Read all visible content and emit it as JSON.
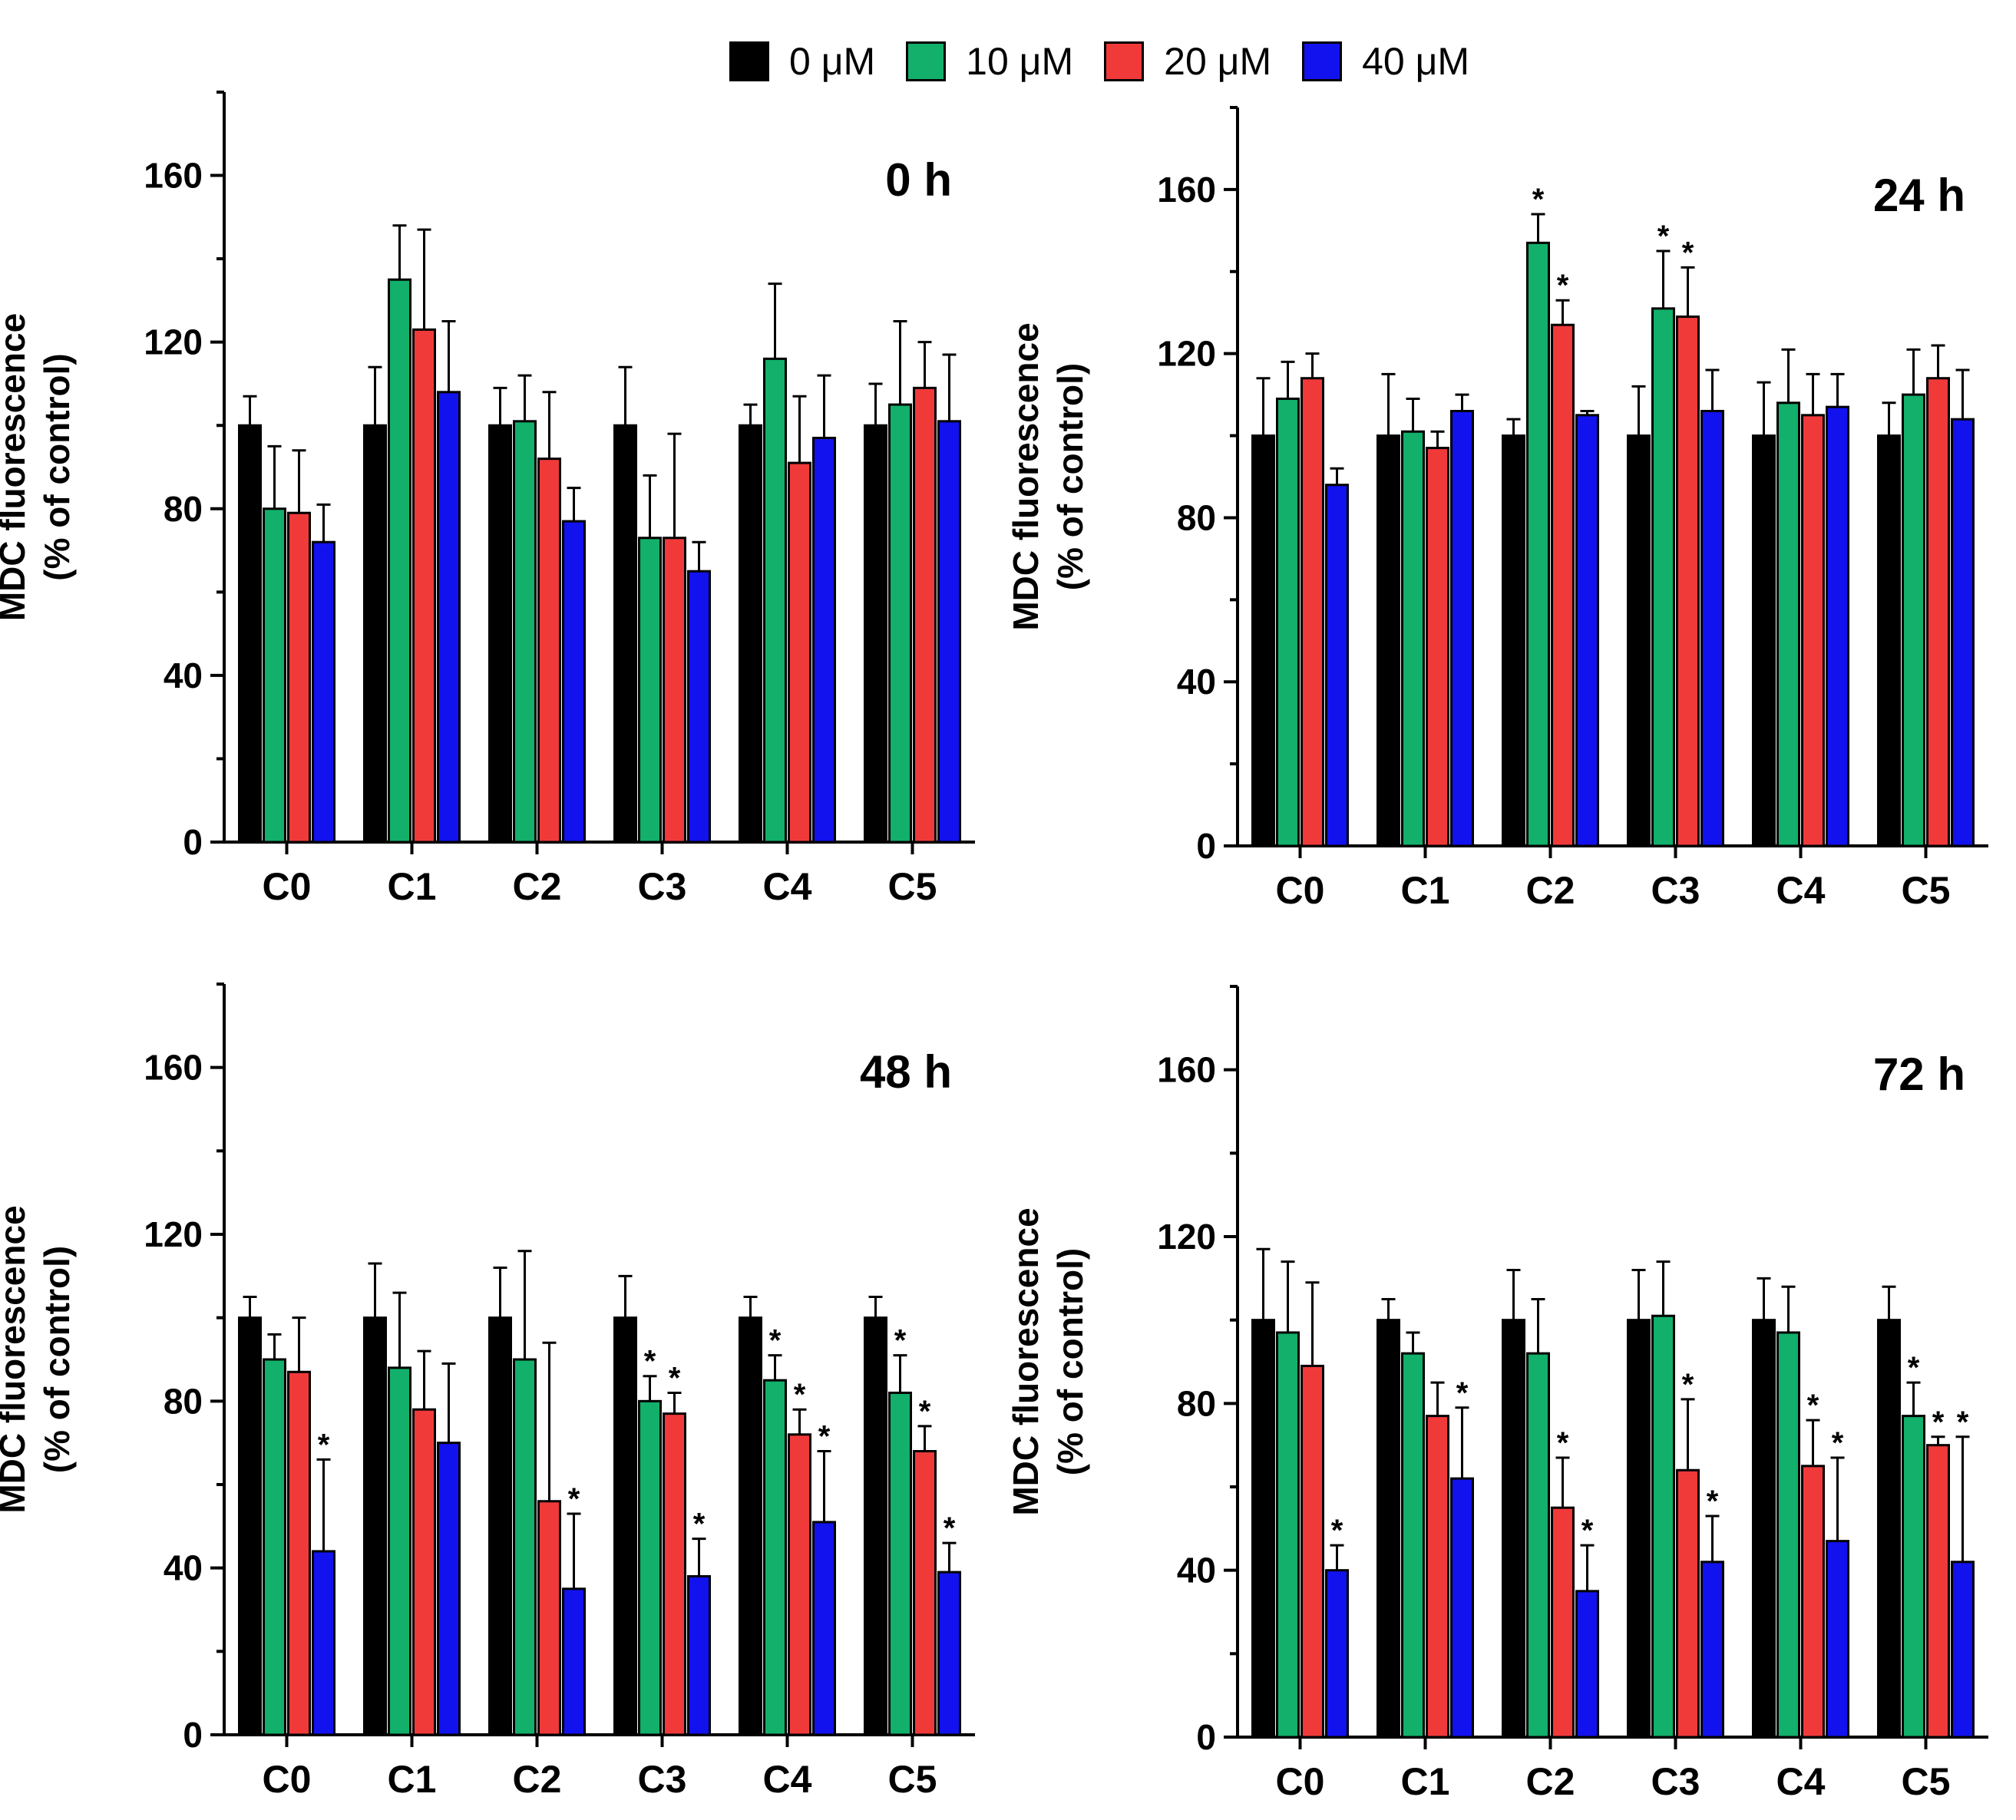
{
  "chart_data": {
    "type": "bar",
    "y_unit_label": "MDC fluorescence",
    "y_unit_sublabel": "(% of control)",
    "categories": [
      "C0",
      "C1",
      "C2",
      "C3",
      "C4",
      "C5"
    ],
    "ylim": [
      0,
      180
    ],
    "yticks": [
      0,
      40,
      80,
      120,
      160
    ],
    "legend": [
      {
        "name": "0 μM",
        "color": "#000000"
      },
      {
        "name": "10 μM",
        "color": "#12b06a"
      },
      {
        "name": "20 μM",
        "color": "#f03a3a"
      },
      {
        "name": "40 μM",
        "color": "#1212ee"
      }
    ],
    "panels": [
      {
        "title": "0 h",
        "series": [
          {
            "name": "0 μM",
            "values": [
              100,
              100,
              100,
              100,
              100,
              100
            ],
            "errors": [
              7,
              14,
              9,
              14,
              5,
              10
            ]
          },
          {
            "name": "10 μM",
            "values": [
              80,
              135,
              101,
              73,
              116,
              105
            ],
            "errors": [
              15,
              13,
              11,
              15,
              18,
              20
            ]
          },
          {
            "name": "20 μM",
            "values": [
              79,
              123,
              92,
              73,
              91,
              109
            ],
            "errors": [
              15,
              24,
              16,
              25,
              16,
              11
            ]
          },
          {
            "name": "40 μM",
            "values": [
              72,
              108,
              77,
              65,
              97,
              101
            ],
            "errors": [
              9,
              17,
              8,
              7,
              15,
              16
            ]
          }
        ],
        "stars": []
      },
      {
        "title": "24 h",
        "series": [
          {
            "name": "0 μM",
            "values": [
              100,
              100,
              100,
              100,
              100,
              100
            ],
            "errors": [
              14,
              15,
              4,
              12,
              13,
              8
            ]
          },
          {
            "name": "10 μM",
            "values": [
              109,
              101,
              147,
              131,
              108,
              110
            ],
            "errors": [
              9,
              8,
              7,
              14,
              13,
              11
            ]
          },
          {
            "name": "20 μM",
            "values": [
              114,
              97,
              127,
              129,
              105,
              114
            ],
            "errors": [
              6,
              4,
              6,
              12,
              10,
              8
            ]
          },
          {
            "name": "40 μM",
            "values": [
              88,
              106,
              105,
              106,
              107,
              104
            ],
            "errors": [
              4,
              4,
              1,
              10,
              8,
              12
            ]
          }
        ],
        "stars": [
          [
            2,
            1
          ],
          [
            2,
            2
          ],
          [
            3,
            1
          ],
          [
            3,
            2
          ]
        ]
      },
      {
        "title": "48 h",
        "series": [
          {
            "name": "0 μM",
            "values": [
              100,
              100,
              100,
              100,
              100,
              100
            ],
            "errors": [
              5,
              13,
              12,
              10,
              5,
              5
            ]
          },
          {
            "name": "10 μM",
            "values": [
              90,
              88,
              90,
              80,
              85,
              82
            ],
            "errors": [
              6,
              18,
              26,
              6,
              6,
              9
            ]
          },
          {
            "name": "20 μM",
            "values": [
              87,
              78,
              56,
              77,
              72,
              68
            ],
            "errors": [
              13,
              14,
              38,
              5,
              6,
              6
            ]
          },
          {
            "name": "40 μM",
            "values": [
              44,
              70,
              35,
              38,
              51,
              39
            ],
            "errors": [
              22,
              19,
              18,
              9,
              17,
              7
            ]
          }
        ],
        "stars": [
          [
            0,
            3
          ],
          [
            2,
            3
          ],
          [
            3,
            1
          ],
          [
            3,
            2
          ],
          [
            3,
            3
          ],
          [
            4,
            1
          ],
          [
            4,
            2
          ],
          [
            4,
            3
          ],
          [
            5,
            1
          ],
          [
            5,
            2
          ],
          [
            5,
            3
          ]
        ]
      },
      {
        "title": "72 h",
        "series": [
          {
            "name": "0 μM",
            "values": [
              100,
              100,
              100,
              100,
              100,
              100
            ],
            "errors": [
              17,
              5,
              12,
              12,
              10,
              8
            ]
          },
          {
            "name": "10 μM",
            "values": [
              97,
              92,
              92,
              101,
              97,
              77
            ],
            "errors": [
              17,
              5,
              13,
              13,
              11,
              8
            ]
          },
          {
            "name": "20 μM",
            "values": [
              89,
              77,
              55,
              64,
              65,
              70
            ],
            "errors": [
              20,
              8,
              12,
              17,
              11,
              2
            ]
          },
          {
            "name": "40 μM",
            "values": [
              40,
              62,
              35,
              42,
              47,
              42
            ],
            "errors": [
              6,
              17,
              11,
              11,
              20,
              30
            ]
          }
        ],
        "stars": [
          [
            0,
            3
          ],
          [
            1,
            3
          ],
          [
            2,
            2
          ],
          [
            2,
            3
          ],
          [
            3,
            2
          ],
          [
            3,
            3
          ],
          [
            4,
            2
          ],
          [
            4,
            3
          ],
          [
            5,
            1
          ],
          [
            5,
            2
          ],
          [
            5,
            3
          ]
        ]
      }
    ]
  }
}
